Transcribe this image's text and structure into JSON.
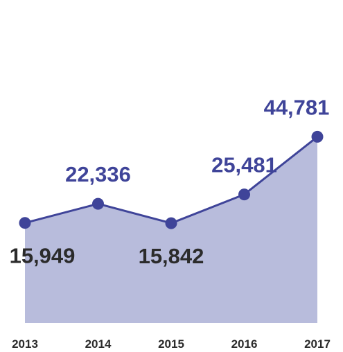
{
  "chart_data": {
    "type": "area",
    "x": [
      "2013",
      "2014",
      "2015",
      "2016",
      "2017"
    ],
    "values": [
      15949,
      22336,
      15842,
      25481,
      44781
    ],
    "value_labels": [
      "15,949",
      "22,336",
      "15,842",
      "25,481",
      "44,781"
    ],
    "label_position": [
      "below",
      "above",
      "below",
      "above",
      "above"
    ],
    "colors": {
      "area": "#b8bcdc",
      "line": "#3f4499",
      "point": "#3f4499",
      "label_above": "#3f4499",
      "label_below": "#2b2b2b",
      "tick": "#2b2b2b"
    },
    "grid": false,
    "legend": "none"
  }
}
